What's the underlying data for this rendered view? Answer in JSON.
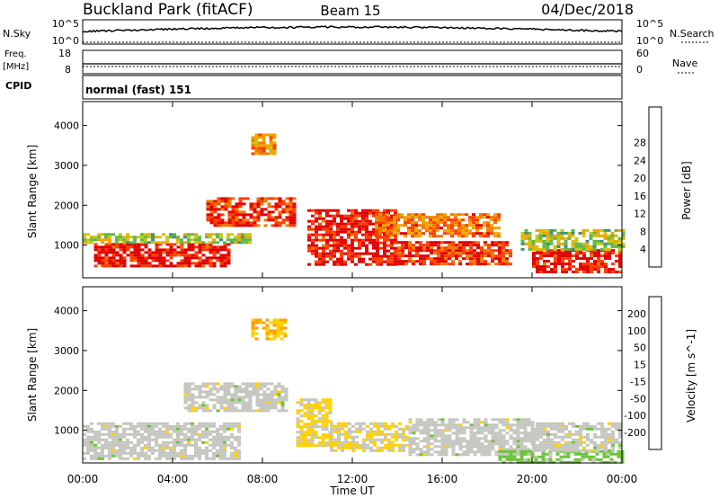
{
  "header": {
    "station": "Buckland Park (fitACF)",
    "beam": "Beam 15",
    "date": "04/Dec/2018"
  },
  "nsky_panel": {
    "left_label": "N.Sky",
    "left_ticks": [
      "10^5",
      "10^0"
    ],
    "right_ticks": [
      "10^5",
      "10^0"
    ],
    "right_label": "N.Search"
  },
  "freq_panel": {
    "left_label_line1": "Freq.",
    "left_label_line2": "[MHz]",
    "left_ticks": [
      "18",
      "8"
    ],
    "right_ticks": [
      "60",
      "0"
    ],
    "right_label": "Nave"
  },
  "cpid_panel": {
    "label": "CPID",
    "value": "normal (fast) 151"
  },
  "power_panel": {
    "ylabel": "Slant Range [km]",
    "yticks": [
      "1000",
      "2000",
      "3000",
      "4000"
    ],
    "colorbar_label": "Power [dB]",
    "colorbar_ticks": [
      "4",
      "8",
      "12",
      "16",
      "20",
      "24",
      "28"
    ],
    "colors": [
      "#1010e0",
      "#2f6fb0",
      "#3e8f7c",
      "#5fb84a",
      "#c8c810",
      "#f0a500",
      "#f07a00",
      "#ff3d00",
      "#e00000"
    ]
  },
  "velocity_panel": {
    "ylabel": "Slant Range [km]",
    "yticks": [
      "1000",
      "2000",
      "3000",
      "4000"
    ],
    "colorbar_label": "Velocity [m s^-1]",
    "colorbar_ticks": [
      "200",
      "100",
      "50",
      "15",
      "-15",
      "-50",
      "-100",
      "-200"
    ],
    "colors": [
      "#1a2bd0",
      "#2f6aa8",
      "#3d8a5a",
      "#6cc43a",
      "#c6c6c0",
      "#ffd000",
      "#ffa000",
      "#ff6a00",
      "#e00000"
    ]
  },
  "xaxis": {
    "ticks": [
      "00:00",
      "04:00",
      "08:00",
      "12:00",
      "16:00",
      "20:00",
      "00:00"
    ],
    "label": "Time UT"
  },
  "chart_data": [
    {
      "type": "heatmap",
      "title": "Power [dB]",
      "xlabel": "Time UT",
      "ylabel": "Slant Range [km]",
      "xlim_hours": [
        0,
        24
      ],
      "ylim": [
        180,
        4600
      ],
      "colorbar_range": [
        0,
        30
      ],
      "regions": [
        {
          "t": [
            0.5,
            6.5
          ],
          "r": [
            450,
            1050
          ],
          "power": 28
        },
        {
          "t": [
            0.0,
            7.5
          ],
          "r": [
            1050,
            1300
          ],
          "power": 14
        },
        {
          "t": [
            5.5,
            9.5
          ],
          "r": [
            1500,
            2200
          ],
          "power": 26
        },
        {
          "t": [
            7.5,
            8.5
          ],
          "r": [
            3300,
            3800
          ],
          "power": 20
        },
        {
          "t": [
            10.0,
            14.0
          ],
          "r": [
            500,
            1900
          ],
          "power": 28
        },
        {
          "t": [
            14.0,
            19.0
          ],
          "r": [
            500,
            1100
          ],
          "power": 26
        },
        {
          "t": [
            13.0,
            18.5
          ],
          "r": [
            1200,
            1800
          ],
          "power": 22
        },
        {
          "t": [
            20.0,
            24.0
          ],
          "r": [
            300,
            900
          ],
          "power": 28
        },
        {
          "t": [
            19.5,
            24.0
          ],
          "r": [
            900,
            1400
          ],
          "power": 14
        }
      ]
    },
    {
      "type": "heatmap",
      "title": "Velocity [m s^-1]",
      "xlabel": "Time UT",
      "ylabel": "Slant Range [km]",
      "xlim_hours": [
        0,
        24
      ],
      "ylim": [
        180,
        4600
      ],
      "colorbar_range": [
        -250,
        250
      ],
      "regions": [
        {
          "t": [
            0.0,
            7.0
          ],
          "r": [
            300,
            1200
          ],
          "velocity": 0
        },
        {
          "t": [
            4.5,
            9.0
          ],
          "r": [
            1500,
            2200
          ],
          "velocity": 0
        },
        {
          "t": [
            7.5,
            9.0
          ],
          "r": [
            3300,
            3800
          ],
          "velocity": 80
        },
        {
          "t": [
            9.5,
            11.0
          ],
          "r": [
            600,
            1800
          ],
          "velocity": 40
        },
        {
          "t": [
            11.0,
            14.5
          ],
          "r": [
            500,
            1200
          ],
          "velocity": 30
        },
        {
          "t": [
            14.5,
            20.0
          ],
          "r": [
            400,
            1300
          ],
          "velocity": 0
        },
        {
          "t": [
            18.5,
            24.0
          ],
          "r": [
            180,
            500
          ],
          "velocity": -50
        },
        {
          "t": [
            20.0,
            24.0
          ],
          "r": [
            500,
            1200
          ],
          "velocity": 0
        }
      ]
    }
  ]
}
